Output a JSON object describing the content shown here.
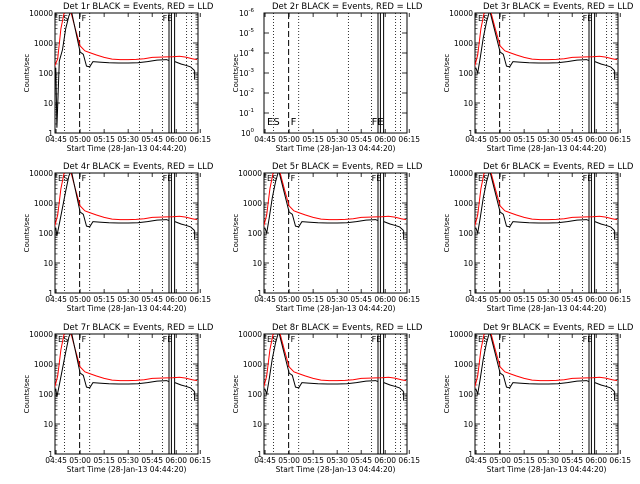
{
  "figure": {
    "xlabel": "Start Time (28-Jan-13 04:44:20)",
    "ylabel": "Counts/sec",
    "legend_text": "BLACK = Events, RED = LLD",
    "colors": {
      "events": "#000000",
      "lld": "#ff0000"
    }
  },
  "chart_data": [
    {
      "type": "line",
      "title": "Det 1r BLACK = Events, RED = LLD",
      "yscale": "log",
      "ylim": [
        1,
        10000
      ],
      "x_ticks": [
        "04:45",
        "05:00",
        "05:15",
        "05:30",
        "05:45",
        "06:00",
        "06:15"
      ],
      "y_ticks": [
        "1",
        "10",
        "100",
        "1000",
        "10000"
      ],
      "markers": [
        {
          "text": "ES",
          "t": 282
        },
        {
          "text": "F",
          "t": 299.7
        },
        {
          "text": "FE",
          "t": 361.5
        }
      ],
      "series": [
        {
          "name": "Events",
          "values": [
            [
              284.8,
              150
            ],
            [
              285.5,
              1.5
            ],
            [
              287,
              250
            ],
            [
              289,
              600
            ],
            [
              291,
              3000
            ],
            [
              293,
              8000
            ],
            [
              294.5,
              12000
            ]
          ]
        },
        {
          "name": "LLD",
          "values": [
            [
              282,
              300
            ],
            [
              284.3,
              180
            ],
            [
              286,
              300
            ],
            [
              288,
              3000
            ],
            [
              290,
              10000
            ],
            [
              291.5,
              14000
            ]
          ]
        }
      ]
    },
    {
      "type": "line",
      "title": "Det 2r BLACK = Events, RED = LLD",
      "yscale": "log",
      "ylim": [
        1,
        1e-06
      ],
      "x_ticks": [
        "04:45",
        "05:00",
        "05:15",
        "05:30",
        "05:45",
        "06:00",
        "06:15"
      ],
      "y_ticks": [
        "10^0",
        "10^-1",
        "10^-2",
        "10^-3",
        "10^-4",
        "10^-5",
        "10^-6"
      ],
      "markers": [
        {
          "text": "ES",
          "t": 282
        },
        {
          "text": "F",
          "t": 299.7
        },
        {
          "text": "FE",
          "t": 361.5
        }
      ],
      "series": []
    },
    {
      "type": "line",
      "title": "Det 3r BLACK = Events, RED = LLD",
      "yscale": "log",
      "ylim": [
        1,
        10000
      ],
      "x_ticks": [
        "04:45",
        "05:00",
        "05:15",
        "05:30",
        "05:45",
        "06:00",
        "06:15"
      ],
      "y_ticks": [
        "1",
        "10",
        "100",
        "1000",
        "10000"
      ],
      "markers": [
        {
          "text": "ES",
          "t": 282
        },
        {
          "text": "F",
          "t": 299.7
        },
        {
          "text": "FE",
          "t": 361.5
        }
      ],
      "series": [
        {
          "name": "Events",
          "values": [
            [
              284.8,
              150
            ],
            [
              286,
              100
            ],
            [
              287.5,
              300
            ],
            [
              289.5,
              1500
            ],
            [
              291.5,
              5000
            ],
            [
              293.5,
              12000
            ]
          ]
        },
        {
          "name": "LLD",
          "values": [
            [
              282,
              300
            ],
            [
              284.3,
              180
            ],
            [
              286,
              400
            ],
            [
              288,
              3000
            ],
            [
              290,
              10000
            ],
            [
              291.5,
              14000
            ]
          ]
        }
      ]
    },
    {
      "type": "line",
      "title": "Det 4r BLACK = Events, RED = LLD",
      "yscale": "log",
      "ylim": [
        1,
        10000
      ],
      "x_ticks": [
        "04:45",
        "05:00",
        "05:15",
        "05:30",
        "05:45",
        "06:00",
        "06:15"
      ],
      "y_ticks": [
        "1",
        "10",
        "100",
        "1000",
        "10000"
      ],
      "markers": [
        {
          "text": "ES",
          "t": 282
        },
        {
          "text": "F",
          "t": 299.7
        },
        {
          "text": "FE",
          "t": 361.5
        }
      ],
      "series": [
        {
          "name": "Events",
          "values": [
            [
              284.8,
              150
            ],
            [
              285.5,
              80
            ],
            [
              287,
              200
            ],
            [
              289,
              700
            ],
            [
              291,
              2500
            ],
            [
              293,
              8000
            ],
            [
              294.5,
              12000
            ]
          ]
        },
        {
          "name": "LLD",
          "values": [
            [
              282,
              300
            ],
            [
              284.3,
              180
            ],
            [
              286,
              400
            ],
            [
              288,
              3000
            ],
            [
              290,
              10000
            ],
            [
              291.5,
              14000
            ]
          ]
        }
      ]
    },
    {
      "type": "line",
      "title": "Det 5r BLACK = Events, RED = LLD",
      "yscale": "log",
      "ylim": [
        1,
        10000
      ],
      "x_ticks": [
        "04:45",
        "05:00",
        "05:15",
        "05:30",
        "05:45",
        "06:00",
        "06:15"
      ],
      "y_ticks": [
        "1",
        "10",
        "100",
        "1000",
        "10000"
      ],
      "markers": [
        {
          "text": "ES",
          "t": 282
        },
        {
          "text": "F",
          "t": 299.7
        },
        {
          "text": "FE",
          "t": 361.5
        }
      ],
      "series": [
        {
          "name": "Events",
          "values": [
            [
              284.8,
              150
            ],
            [
              286,
              100
            ],
            [
              287.5,
              300
            ],
            [
              289.5,
              1500
            ],
            [
              291.5,
              5000
            ],
            [
              293.5,
              12000
            ]
          ]
        },
        {
          "name": "LLD",
          "values": [
            [
              282,
              300
            ],
            [
              284.3,
              180
            ],
            [
              286,
              400
            ],
            [
              288,
              3000
            ],
            [
              290,
              10000
            ],
            [
              291.5,
              14000
            ]
          ]
        }
      ]
    },
    {
      "type": "line",
      "title": "Det 6r BLACK = Events, RED = LLD",
      "yscale": "log",
      "ylim": [
        1,
        10000
      ],
      "x_ticks": [
        "04:45",
        "05:00",
        "05:15",
        "05:30",
        "05:45",
        "06:00",
        "06:15"
      ],
      "y_ticks": [
        "1",
        "10",
        "100",
        "1000",
        "10000"
      ],
      "markers": [
        {
          "text": "ES",
          "t": 282
        },
        {
          "text": "F",
          "t": 299.7
        },
        {
          "text": "FE",
          "t": 361.5
        }
      ],
      "series": [
        {
          "name": "Events",
          "values": [
            [
              284.8,
              150
            ],
            [
              286,
              100
            ],
            [
              287.5,
              300
            ],
            [
              289.5,
              1500
            ],
            [
              291.5,
              5000
            ],
            [
              293.5,
              12000
            ]
          ]
        },
        {
          "name": "LLD",
          "values": [
            [
              282,
              300
            ],
            [
              284.3,
              180
            ],
            [
              286,
              400
            ],
            [
              288,
              3000
            ],
            [
              290,
              10000
            ],
            [
              291.5,
              14000
            ]
          ]
        }
      ]
    },
    {
      "type": "line",
      "title": "Det 7r BLACK = Events, RED = LLD",
      "yscale": "log",
      "ylim": [
        1,
        10000
      ],
      "x_ticks": [
        "04:45",
        "05:00",
        "05:15",
        "05:30",
        "05:45",
        "06:00",
        "06:15"
      ],
      "y_ticks": [
        "1",
        "10",
        "100",
        "1000",
        "10000"
      ],
      "markers": [
        {
          "text": "ES",
          "t": 282
        },
        {
          "text": "F",
          "t": 299.7
        },
        {
          "text": "FE",
          "t": 361.5
        }
      ],
      "series": [
        {
          "name": "Events",
          "values": [
            [
              284.8,
              150
            ],
            [
              285.5,
              80
            ],
            [
              287,
              200
            ],
            [
              289,
              700
            ],
            [
              291,
              2500
            ],
            [
              293,
              8000
            ],
            [
              294.5,
              12000
            ]
          ]
        },
        {
          "name": "LLD",
          "values": [
            [
              282,
              300
            ],
            [
              284.3,
              180
            ],
            [
              286,
              400
            ],
            [
              288,
              3000
            ],
            [
              290,
              10000
            ],
            [
              291.5,
              14000
            ]
          ]
        }
      ]
    },
    {
      "type": "line",
      "title": "Det 8r BLACK = Events, RED = LLD",
      "yscale": "log",
      "ylim": [
        1,
        10000
      ],
      "x_ticks": [
        "04:45",
        "05:00",
        "05:15",
        "05:30",
        "05:45",
        "06:00",
        "06:15"
      ],
      "y_ticks": [
        "1",
        "10",
        "100",
        "1000",
        "10000"
      ],
      "markers": [
        {
          "text": "ES",
          "t": 282
        },
        {
          "text": "F",
          "t": 299.7
        },
        {
          "text": "FE",
          "t": 361.5
        }
      ],
      "series": [
        {
          "name": "Events",
          "values": [
            [
              284.8,
              150
            ],
            [
              286,
              100
            ],
            [
              287.5,
              300
            ],
            [
              289.5,
              1500
            ],
            [
              291.5,
              5000
            ],
            [
              293.5,
              12000
            ]
          ]
        },
        {
          "name": "LLD",
          "values": [
            [
              282,
              300
            ],
            [
              284.3,
              180
            ],
            [
              286,
              400
            ],
            [
              288,
              3000
            ],
            [
              290,
              10000
            ],
            [
              291.5,
              14000
            ]
          ]
        }
      ]
    },
    {
      "type": "line",
      "title": "Det 9r BLACK = Events, RED = LLD",
      "yscale": "log",
      "ylim": [
        1,
        10000
      ],
      "x_ticks": [
        "04:45",
        "05:00",
        "05:15",
        "05:30",
        "05:45",
        "06:00",
        "06:15"
      ],
      "y_ticks": [
        "1",
        "10",
        "100",
        "1000",
        "10000"
      ],
      "markers": [
        {
          "text": "ES",
          "t": 282
        },
        {
          "text": "F",
          "t": 299.7
        },
        {
          "text": "FE",
          "t": 361.5
        }
      ],
      "series": [
        {
          "name": "Events",
          "values": [
            [
              284.8,
              150
            ],
            [
              286,
              100
            ],
            [
              287.5,
              300
            ],
            [
              289.5,
              1500
            ],
            [
              291.5,
              5000
            ],
            [
              293.5,
              12000
            ]
          ]
        },
        {
          "name": "LLD",
          "values": [
            [
              282,
              300
            ],
            [
              284.3,
              180
            ],
            [
              286,
              400
            ],
            [
              288,
              3000
            ],
            [
              290,
              10000
            ],
            [
              291.5,
              14000
            ]
          ]
        }
      ]
    }
  ]
}
